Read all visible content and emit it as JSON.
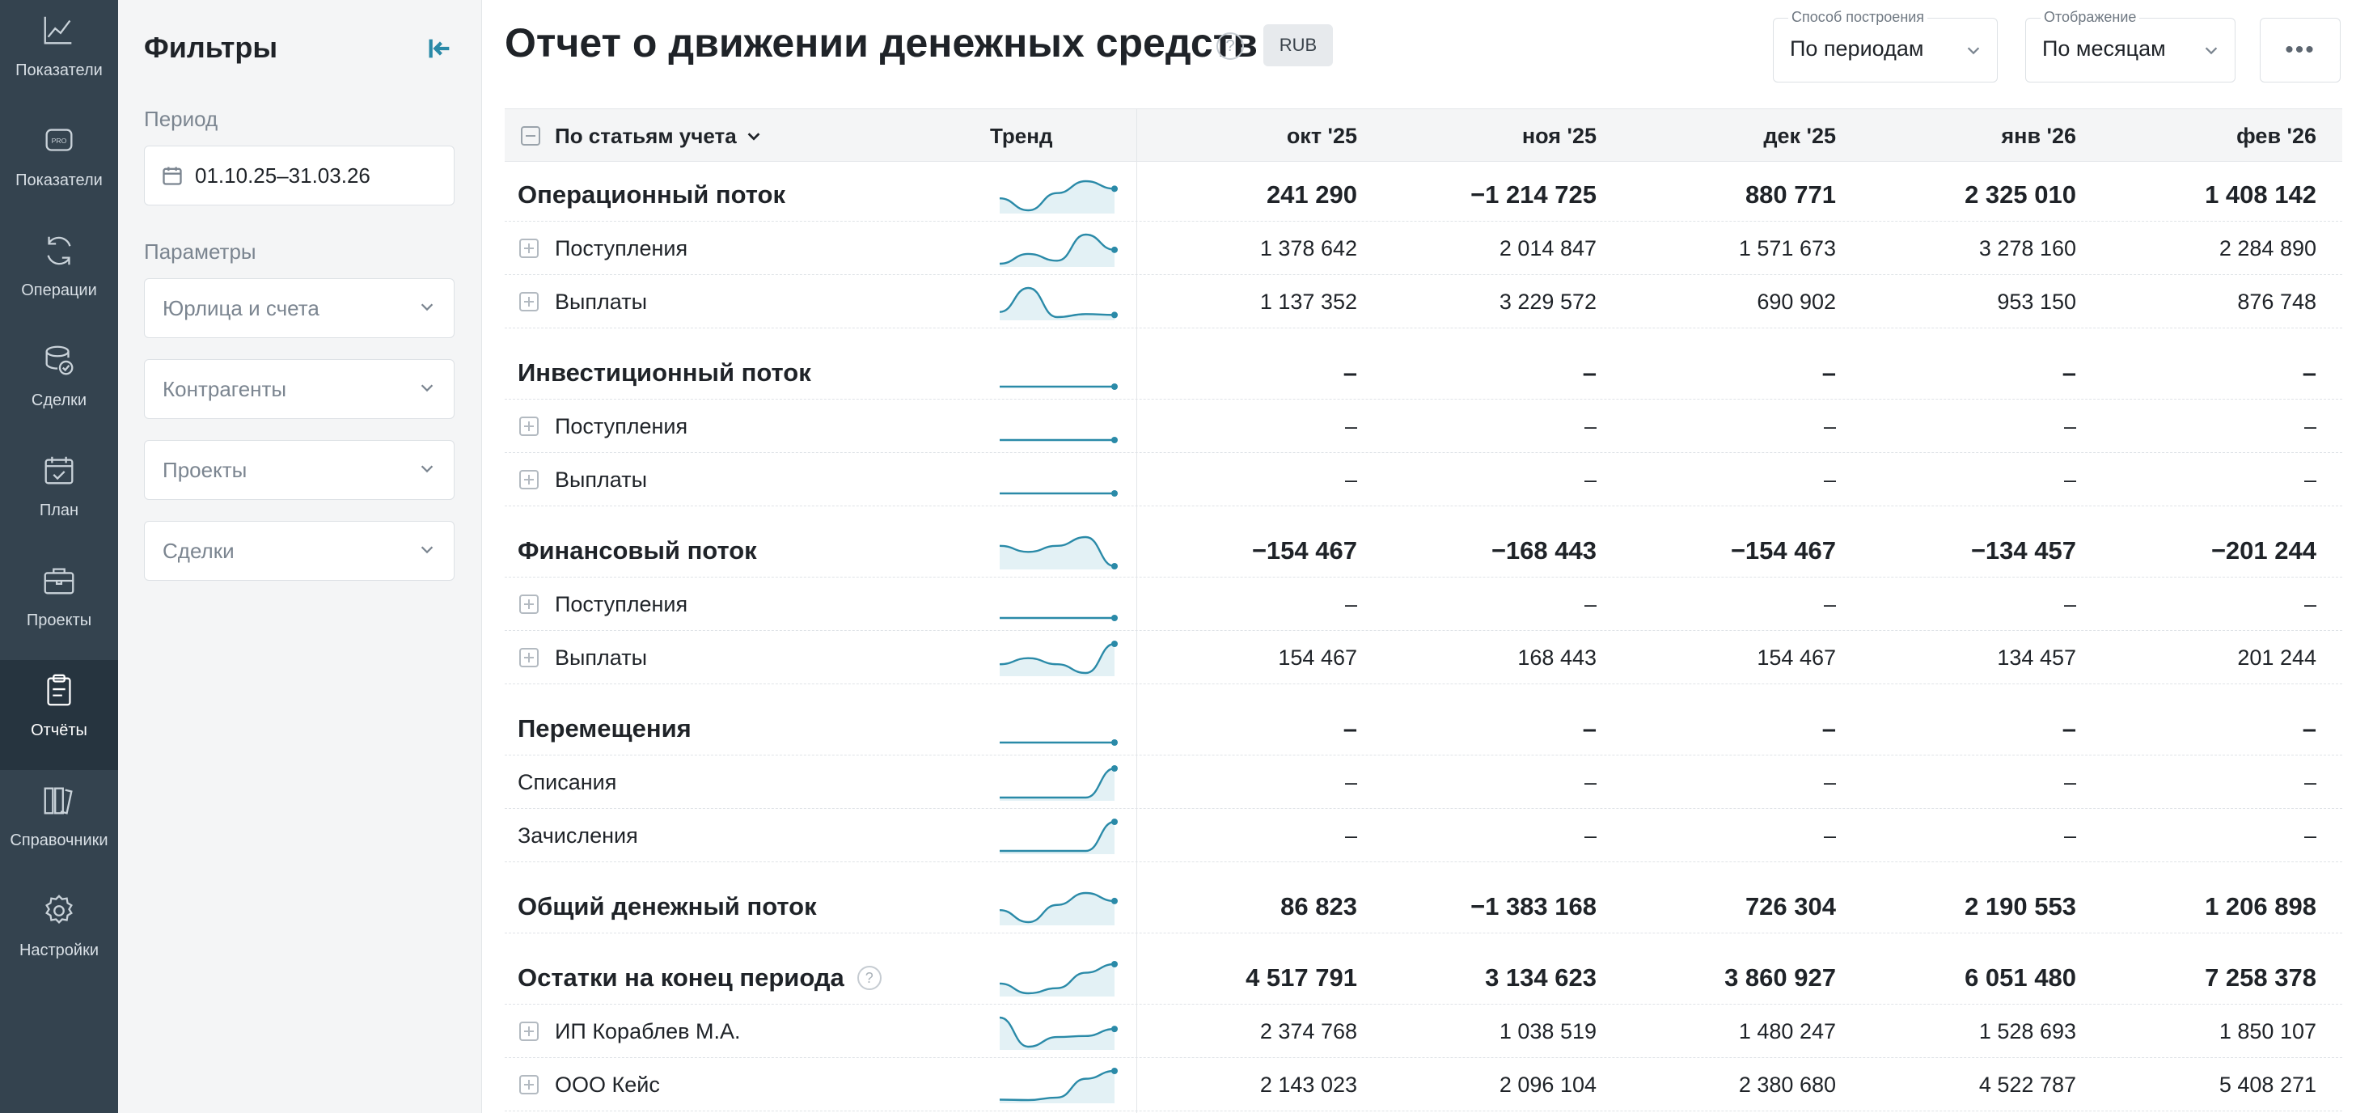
{
  "nav": [
    {
      "label": "Показатели",
      "icon": "chart-icon",
      "active": false
    },
    {
      "label": "Показатели",
      "icon": "pro-icon",
      "active": false,
      "badge": "PRO"
    },
    {
      "label": "Операции",
      "icon": "refresh-icon",
      "active": false
    },
    {
      "label": "Сделки",
      "icon": "coins-icon",
      "active": false
    },
    {
      "label": "План",
      "icon": "calendar-check-icon",
      "active": false
    },
    {
      "label": "Проекты",
      "icon": "briefcase-icon",
      "active": false
    },
    {
      "label": "Отчёты",
      "icon": "clipboard-icon",
      "active": true
    },
    {
      "label": "Справочники",
      "icon": "books-icon",
      "active": false
    },
    {
      "label": "Настройки",
      "icon": "gear-icon",
      "active": false
    }
  ],
  "filters": {
    "title": "Фильтры",
    "period_label": "Период",
    "period_value": "01.10.25–31.03.26",
    "params_label": "Параметры",
    "selects": [
      "Юрлица и счета",
      "Контрагенты",
      "Проекты",
      "Сделки"
    ]
  },
  "header": {
    "title": "Отчет о движении денежных средств",
    "help": "?",
    "currency": "RUB",
    "build_caption": "Способ построения",
    "build_value": "По периодам",
    "display_caption": "Отображение",
    "display_value": "По месяцам",
    "more": "•••"
  },
  "table": {
    "col_articles": "По статьям учета",
    "col_trend": "Тренд",
    "months": [
      "окт '25",
      "ноя '25",
      "дек '25",
      "янв '26",
      "фев '26"
    ],
    "rows": [
      {
        "name": "Операционный поток",
        "type": "section",
        "values": [
          "241 290",
          "−1 214 725",
          "880 771",
          "2 325 010",
          "1 408 142"
        ],
        "trend": [
          241290,
          -1214725,
          880771,
          2325010,
          1408142
        ]
      },
      {
        "name": "Поступления",
        "type": "child",
        "values": [
          "1 378 642",
          "2 014 847",
          "1 571 673",
          "3 278 160",
          "2 284 890"
        ],
        "trend": [
          1378642,
          2014847,
          1571673,
          3278160,
          2284890
        ]
      },
      {
        "name": "Выплаты",
        "type": "child",
        "values": [
          "1 137 352",
          "3 229 572",
          "690 902",
          "953 150",
          "876 748"
        ],
        "trend": [
          1137352,
          3229572,
          690902,
          953150,
          876748
        ]
      },
      {
        "name": "Инвестиционный поток",
        "type": "section",
        "values": [
          "–",
          "–",
          "–",
          "–",
          "–"
        ],
        "trend": [
          0,
          0,
          0,
          0,
          0
        ]
      },
      {
        "name": "Поступления",
        "type": "child",
        "values": [
          "–",
          "–",
          "–",
          "–",
          "–"
        ],
        "trend": [
          0,
          0,
          0,
          0,
          0
        ]
      },
      {
        "name": "Выплаты",
        "type": "child",
        "values": [
          "–",
          "–",
          "–",
          "–",
          "–"
        ],
        "trend": [
          0,
          0,
          0,
          0,
          0
        ]
      },
      {
        "name": "Финансовый поток",
        "type": "section",
        "values": [
          "−154 467",
          "−168 443",
          "−154 467",
          "−134 457",
          "−201 244"
        ],
        "trend": [
          -154467,
          -168443,
          -154467,
          -134457,
          -201244
        ]
      },
      {
        "name": "Поступления",
        "type": "child",
        "values": [
          "–",
          "–",
          "–",
          "–",
          "–"
        ],
        "trend": [
          0,
          0,
          0,
          0,
          0
        ]
      },
      {
        "name": "Выплаты",
        "type": "child",
        "values": [
          "154 467",
          "168 443",
          "154 467",
          "134 457",
          "201 244"
        ],
        "trend": [
          154467,
          168443,
          154467,
          134457,
          201244
        ]
      },
      {
        "name": "Перемещения",
        "type": "section",
        "values": [
          "–",
          "–",
          "–",
          "–",
          "–"
        ],
        "trend": [
          0,
          0,
          0,
          0,
          0
        ]
      },
      {
        "name": "Списания",
        "type": "plain",
        "values": [
          "–",
          "–",
          "–",
          "–",
          "–"
        ],
        "trend": [
          0,
          0,
          0,
          0,
          1
        ]
      },
      {
        "name": "Зачисления",
        "type": "plain",
        "values": [
          "–",
          "–",
          "–",
          "–",
          "–"
        ],
        "trend": [
          0,
          0,
          0,
          0,
          1
        ]
      },
      {
        "name": "Общий денежный поток",
        "type": "section",
        "values": [
          "86 823",
          "−1 383 168",
          "726 304",
          "2 190 553",
          "1 206 898"
        ],
        "trend": [
          86823,
          -1383168,
          726304,
          2190553,
          1206898
        ]
      },
      {
        "name": "Остатки на конец периода",
        "type": "section",
        "help": "?",
        "values": [
          "4 517 791",
          "3 134 623",
          "3 860 927",
          "6 051 480",
          "7 258 378"
        ],
        "trend": [
          4517791,
          3134623,
          3860927,
          6051480,
          7258378
        ]
      },
      {
        "name": "ИП Кораблев М.А.",
        "type": "child",
        "values": [
          "2 374 768",
          "1 038 519",
          "1 480 247",
          "1 528 693",
          "1 850 107"
        ],
        "trend": [
          2374768,
          1038519,
          1480247,
          1528693,
          1850107
        ]
      },
      {
        "name": "ООО Кейс",
        "type": "child",
        "values": [
          "2 143 023",
          "2 096 104",
          "2 380 680",
          "4 522 787",
          "5 408 271"
        ],
        "trend": [
          2143023,
          2096104,
          2380680,
          4522787,
          5408271
        ]
      }
    ]
  },
  "colors": {
    "accent": "#2a8aa8",
    "nav_bg": "#34434f",
    "nav_active": "#26343f",
    "panel_bg": "#f4f5f6"
  }
}
